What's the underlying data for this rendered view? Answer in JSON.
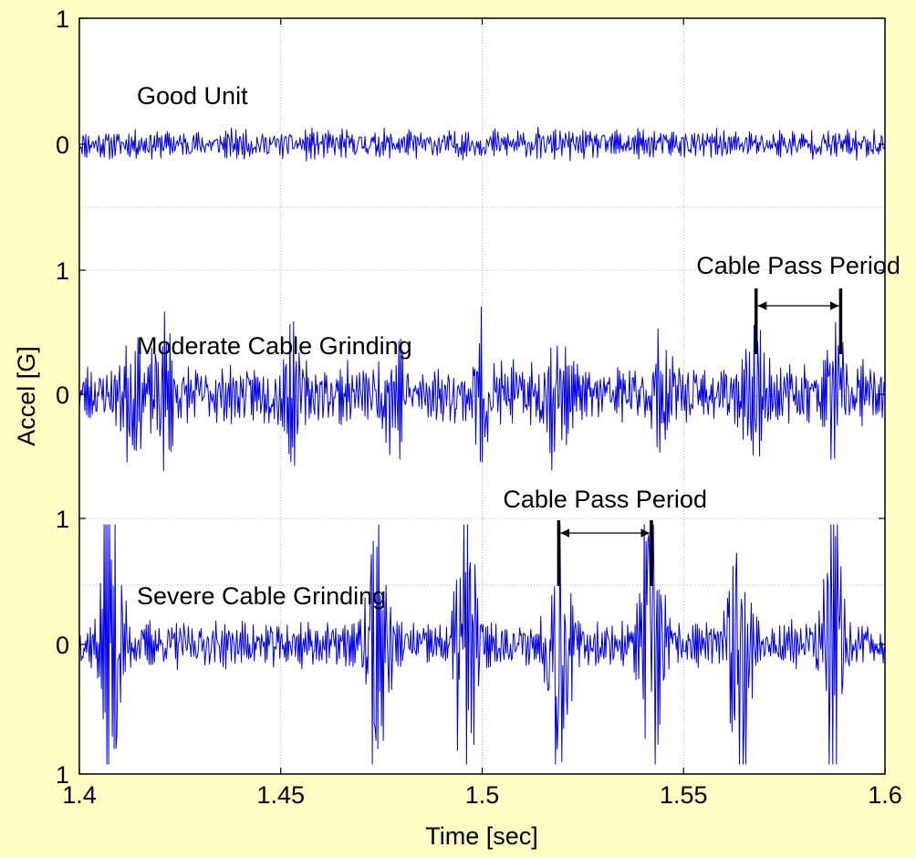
{
  "chart_data": {
    "type": "line",
    "xlabel": "Time [sec]",
    "ylabel": "Accel [G]",
    "xlim": [
      1.4,
      1.6
    ],
    "x_ticks": [
      "1.4",
      "1.45",
      "1.5",
      "1.55",
      "1.6"
    ],
    "y_ticks": [
      "1",
      "0",
      "1",
      "0",
      "1",
      "0",
      "1"
    ],
    "grid": true,
    "colors": {
      "series": "#0000EE",
      "grid": "#A0A0A0",
      "background": "#FFFFC4",
      "plot_area": "#FFFFFF"
    },
    "series": [
      {
        "label": "Good Unit",
        "offset": 0,
        "peak_amplitude": 0.25,
        "seed": 11,
        "bursts": []
      },
      {
        "label": "Moderate Cable Grinding",
        "offset": -1,
        "peak_amplitude": 0.45,
        "seed": 23,
        "bursts": [
          1.413,
          1.421,
          1.452,
          1.478,
          1.5,
          1.518,
          1.545,
          1.568,
          1.588
        ]
      },
      {
        "label": "Severe Cable Grinding",
        "offset": -2,
        "peak_amplitude": 0.7,
        "seed": 37,
        "bursts": [
          1.408,
          1.474,
          1.496,
          1.519,
          1.542,
          1.564,
          1.587
        ]
      }
    ],
    "annotations": [
      {
        "text": "Cable Pass Period",
        "series": "Moderate Cable Grinding",
        "x_start": 1.568,
        "x_end": 1.589
      },
      {
        "text": "Cable Pass Period",
        "series": "Severe Cable Grinding",
        "x_start": 1.519,
        "x_end": 1.542
      }
    ]
  }
}
